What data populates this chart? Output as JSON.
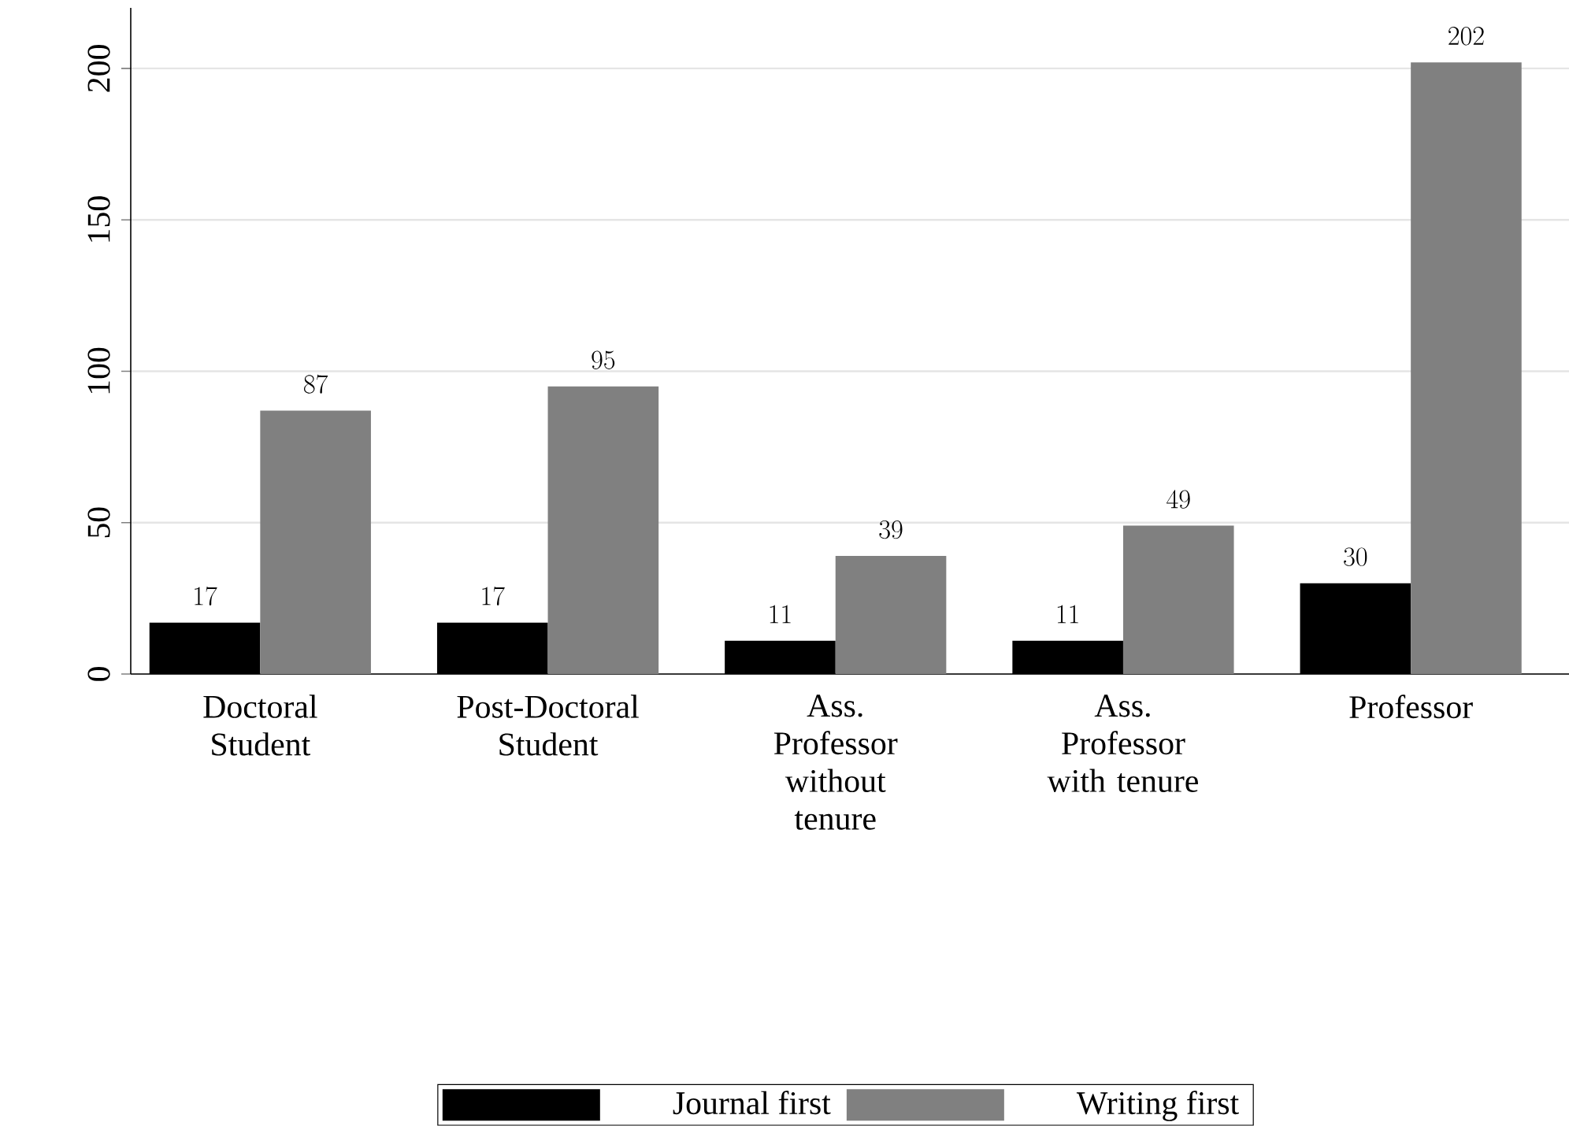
{
  "chart_data": {
    "type": "bar",
    "categories": [
      "Doctoral Student",
      "Post-Doctoral Student",
      "Ass. Professor without tenure",
      "Ass. Professor with tenure",
      "Professor"
    ],
    "series": [
      {
        "name": "Journal first",
        "color": "#000000",
        "values": [
          17,
          17,
          11,
          11,
          30
        ]
      },
      {
        "name": "Writing first",
        "color": "#808080",
        "values": [
          87,
          95,
          39,
          49,
          202
        ]
      }
    ],
    "ylim": [
      0,
      220
    ],
    "yticks": [
      0,
      50,
      100,
      150,
      200
    ],
    "grid": "y",
    "legend": "bottom",
    "data_labels": true
  }
}
